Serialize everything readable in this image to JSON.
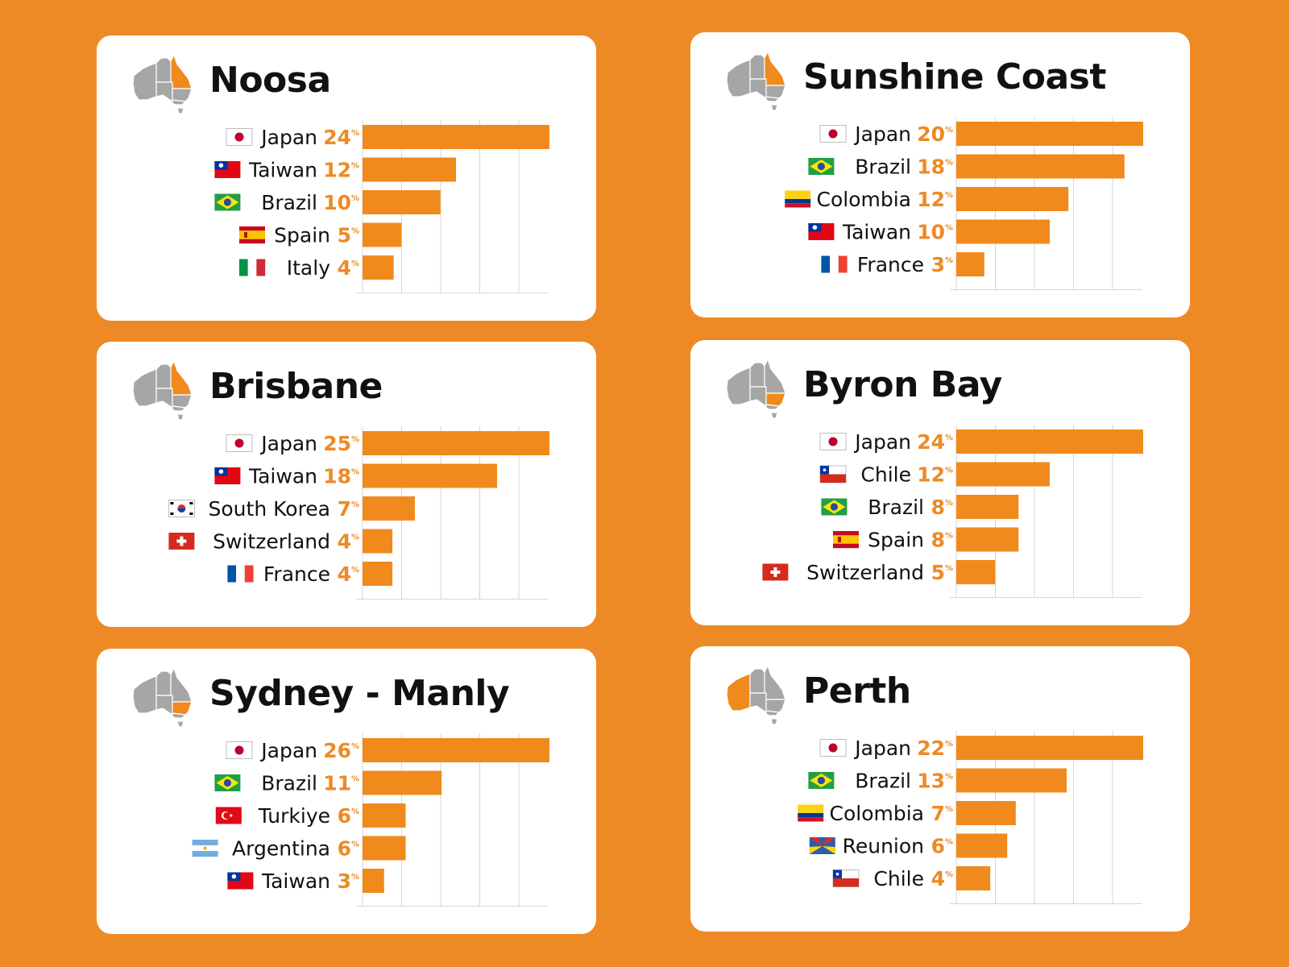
{
  "colors": {
    "background": "#ED8A26",
    "bar": "#F08A1D",
    "value_text": "#ED8A26",
    "map_gray": "#A6A6A6",
    "map_highlight": "#F08A1D"
  },
  "cards": [
    {
      "title": "Noosa",
      "highlight": "qld"
    },
    {
      "title": "Sunshine Coast",
      "highlight": "qld"
    },
    {
      "title": "Brisbane",
      "highlight": "qld"
    },
    {
      "title": "Byron Bay",
      "highlight": "nsw"
    },
    {
      "title": "Sydney - Manly",
      "highlight": "nsw"
    },
    {
      "title": "Perth",
      "highlight": "wa"
    }
  ],
  "chart_data": [
    {
      "type": "bar",
      "orientation": "horizontal",
      "title": "Noosa",
      "categories": [
        "Japan",
        "Taiwan",
        "Brazil",
        "Spain",
        "Italy"
      ],
      "flags": [
        "japan",
        "taiwan",
        "brazil",
        "spain",
        "italy"
      ],
      "values": [
        24,
        12,
        10,
        5,
        4
      ],
      "unit": "%",
      "xlim": [
        0,
        24
      ]
    },
    {
      "type": "bar",
      "orientation": "horizontal",
      "title": "Sunshine Coast",
      "categories": [
        "Japan",
        "Brazil",
        "Colombia",
        "Taiwan",
        "France"
      ],
      "flags": [
        "japan",
        "brazil",
        "colombia",
        "taiwan",
        "france"
      ],
      "values": [
        20,
        18,
        12,
        10,
        3
      ],
      "unit": "%",
      "xlim": [
        0,
        20
      ]
    },
    {
      "type": "bar",
      "orientation": "horizontal",
      "title": "Brisbane",
      "categories": [
        "Japan",
        "Taiwan",
        "South Korea",
        "Switzerland",
        "France"
      ],
      "flags": [
        "japan",
        "taiwan",
        "south-korea",
        "switzerland",
        "france"
      ],
      "values": [
        25,
        18,
        7,
        4,
        4
      ],
      "unit": "%",
      "xlim": [
        0,
        25
      ]
    },
    {
      "type": "bar",
      "orientation": "horizontal",
      "title": "Byron Bay",
      "categories": [
        "Japan",
        "Chile",
        "Brazil",
        "Spain",
        "Switzerland"
      ],
      "flags": [
        "japan",
        "chile",
        "brazil",
        "spain",
        "switzerland"
      ],
      "values": [
        24,
        12,
        8,
        8,
        5
      ],
      "unit": "%",
      "xlim": [
        0,
        24
      ]
    },
    {
      "type": "bar",
      "orientation": "horizontal",
      "title": "Sydney - Manly",
      "categories": [
        "Japan",
        "Brazil",
        "Turkiye",
        "Argentina",
        "Taiwan"
      ],
      "flags": [
        "japan",
        "brazil",
        "turkiye",
        "argentina",
        "taiwan"
      ],
      "values": [
        26,
        11,
        6,
        6,
        3
      ],
      "unit": "%",
      "xlim": [
        0,
        26
      ]
    },
    {
      "type": "bar",
      "orientation": "horizontal",
      "title": "Perth",
      "categories": [
        "Japan",
        "Brazil",
        "Colombia",
        "Reunion",
        "Chile"
      ],
      "flags": [
        "japan",
        "brazil",
        "colombia",
        "reunion",
        "chile"
      ],
      "values": [
        22,
        13,
        7,
        6,
        4
      ],
      "unit": "%",
      "xlim": [
        0,
        22
      ]
    }
  ]
}
